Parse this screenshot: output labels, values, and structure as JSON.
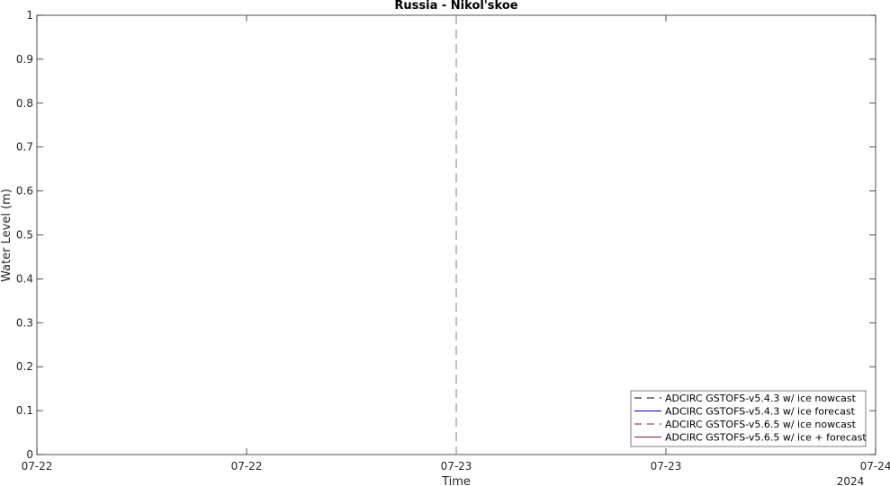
{
  "chart_data": {
    "type": "line",
    "title": "Russia - Nikol'skoe",
    "xlabel": "Time",
    "ylabel": "Water Level (m)",
    "ylim": [
      0,
      1
    ],
    "yticks": [
      0,
      0.1,
      0.2,
      0.3,
      0.4,
      0.5,
      0.6,
      0.7,
      0.8,
      0.9,
      1
    ],
    "ytick_labels": [
      "0",
      "0.1",
      "0.2",
      "0.3",
      "0.4",
      "0.5",
      "0.6",
      "0.7",
      "0.8",
      "0.9",
      "1"
    ],
    "xlim": [
      0,
      4
    ],
    "xticks": [
      0,
      1,
      2,
      3,
      4
    ],
    "xtick_labels": [
      "07-22",
      "07-22",
      "07-23",
      "07-23",
      "07-24"
    ],
    "x_secondary_label": "2024",
    "grid": false,
    "legend_position": "bottom-right",
    "vertical_marker": {
      "x": 2,
      "style": "dashed",
      "color": "#808080"
    },
    "series": [
      {
        "name": "ADCIRC GSTOFS-v5.4.3 w/ ice nowcast",
        "color": "#000000",
        "style": "dashed",
        "values": []
      },
      {
        "name": "ADCIRC GSTOFS-v5.4.3 w/ ice forecast",
        "color": "#0000cc",
        "style": "solid",
        "values": []
      },
      {
        "name": "ADCIRC GSTOFS-v5.6.5 w/ ice nowcast",
        "color": "#8b1a1a",
        "style": "dashed",
        "values": []
      },
      {
        "name": "ADCIRC GSTOFS-v5.6.5 w/ ice + forecast",
        "color": "#8b1a1a",
        "style": "solid",
        "values": []
      }
    ]
  }
}
